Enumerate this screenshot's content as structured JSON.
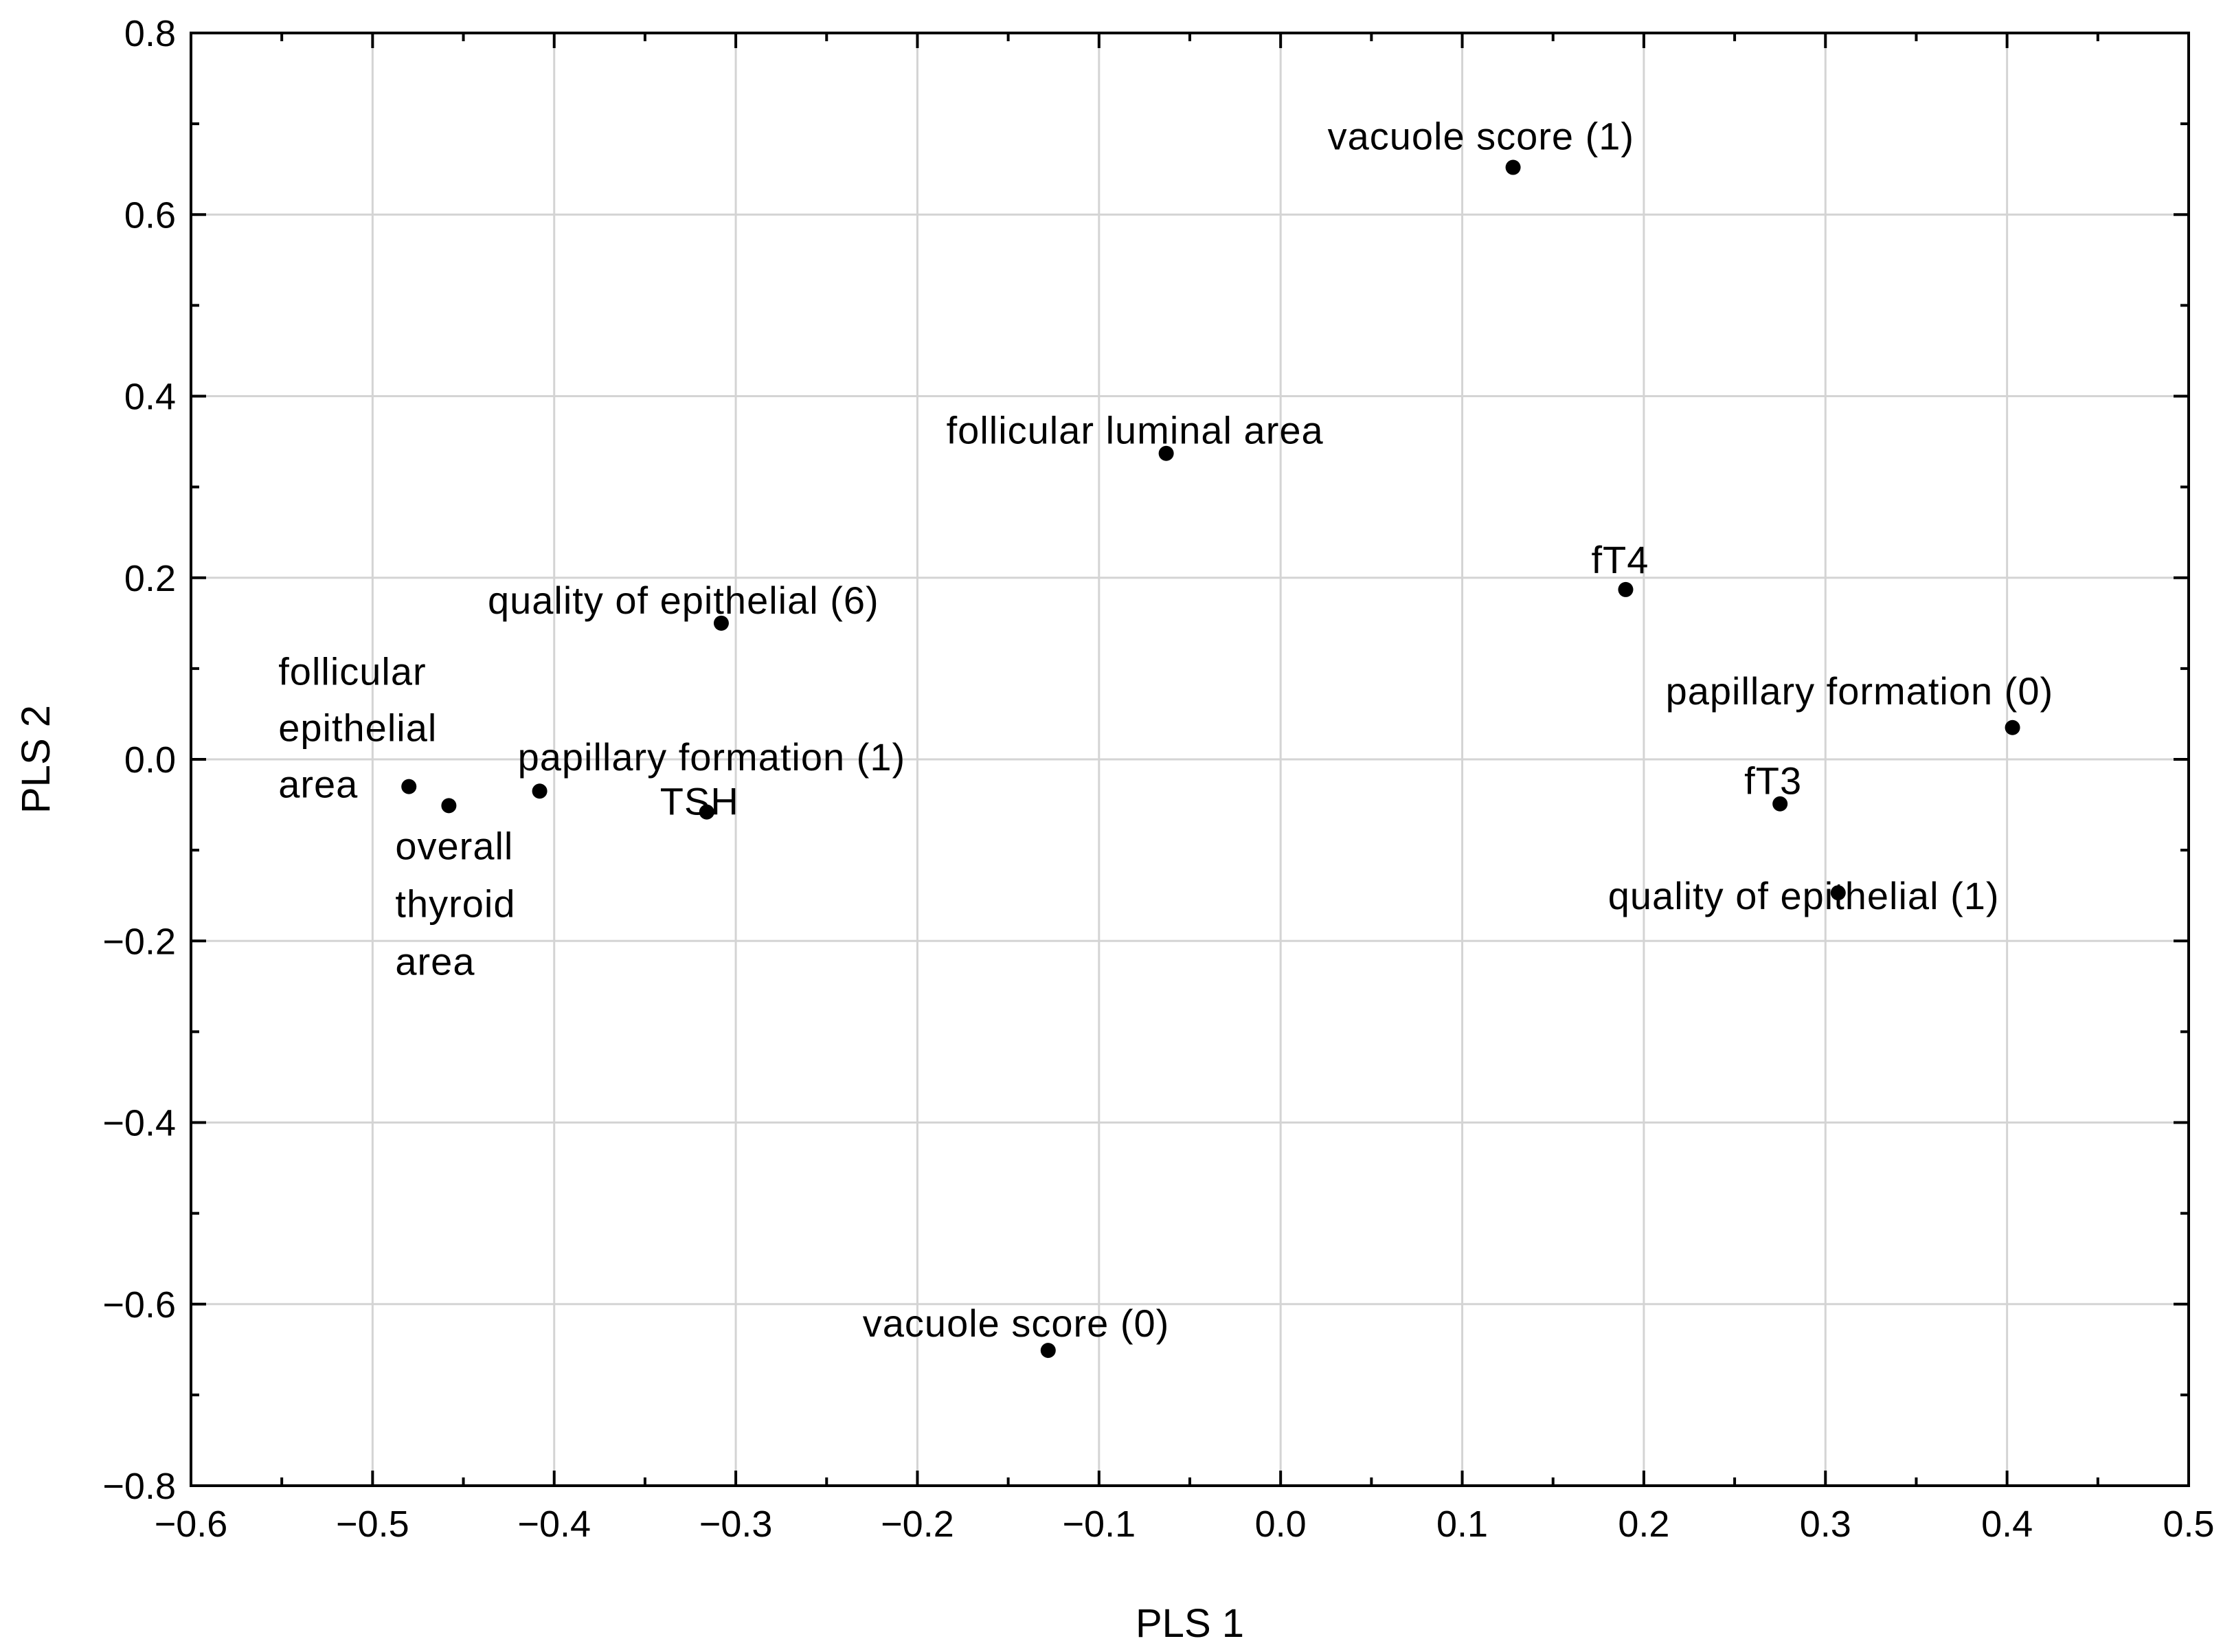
{
  "chart_data": {
    "type": "scatter",
    "title": "",
    "xlabel": "PLS 1",
    "ylabel": "PLS 2",
    "xlim": [
      -0.6,
      0.5
    ],
    "ylim": [
      -0.8,
      0.8
    ],
    "grid": true,
    "x_ticks": [
      {
        "value": -0.6,
        "label": "−0.6"
      },
      {
        "value": -0.5,
        "label": "−0.5"
      },
      {
        "value": -0.4,
        "label": "−0.4"
      },
      {
        "value": -0.3,
        "label": "−0.3"
      },
      {
        "value": -0.2,
        "label": "−0.2"
      },
      {
        "value": -0.1,
        "label": "−0.1"
      },
      {
        "value": 0.0,
        "label": "0.0"
      },
      {
        "value": 0.1,
        "label": "0.1"
      },
      {
        "value": 0.2,
        "label": "0.2"
      },
      {
        "value": 0.3,
        "label": "0.3"
      },
      {
        "value": 0.4,
        "label": "0.4"
      },
      {
        "value": 0.5,
        "label": "0.5"
      }
    ],
    "y_ticks": [
      {
        "value": 0.8,
        "label": "0.8"
      },
      {
        "value": 0.6,
        "label": "0.6"
      },
      {
        "value": 0.4,
        "label": "0.4"
      },
      {
        "value": 0.2,
        "label": "0.2"
      },
      {
        "value": 0.0,
        "label": "0.0"
      },
      {
        "value": -0.2,
        "label": "−0.2"
      },
      {
        "value": -0.4,
        "label": "−0.4"
      },
      {
        "value": -0.6,
        "label": "−0.6"
      },
      {
        "value": -0.8,
        "label": "−0.8"
      }
    ],
    "points": [
      {
        "name": "vacuole-score-1",
        "label": [
          "vacuole score (1)"
        ],
        "x": 0.128,
        "y": 0.652
      },
      {
        "name": "follicular-luminal-area",
        "label": [
          "follicular luminal area"
        ],
        "x": -0.063,
        "y": 0.337
      },
      {
        "name": "ft4",
        "label": [
          "fT4"
        ],
        "x": 0.19,
        "y": 0.187
      },
      {
        "name": "quality-of-epithelial-6",
        "label": [
          "quality of epithelial (6)"
        ],
        "x": -0.308,
        "y": 0.15
      },
      {
        "name": "papillary-formation-0",
        "label": [
          "papillary formation (0)"
        ],
        "x": 0.403,
        "y": 0.035
      },
      {
        "name": "follicular-epithelial-area",
        "label": [
          "follicular",
          "epithelial",
          "area"
        ],
        "x": -0.48,
        "y": -0.03
      },
      {
        "name": "overall-thyroid-area",
        "label": [
          "overall",
          "thyroid",
          "area"
        ],
        "x": -0.458,
        "y": -0.051
      },
      {
        "name": "papillary-formation-1",
        "label": [
          "papillary formation (1)"
        ],
        "x": -0.408,
        "y": -0.035
      },
      {
        "name": "tsh",
        "label": [
          "TSH"
        ],
        "x": -0.316,
        "y": -0.058
      },
      {
        "name": "ft3",
        "label": [
          "fT3"
        ],
        "x": 0.275,
        "y": -0.049
      },
      {
        "name": "quality-of-epithelial-1",
        "label": [
          "quality of epithelial (1)"
        ],
        "x": 0.307,
        "y": -0.147
      },
      {
        "name": "vacuole-score-0",
        "label": [
          "vacuole score (0)"
        ],
        "x": -0.128,
        "y": -0.651
      }
    ]
  }
}
